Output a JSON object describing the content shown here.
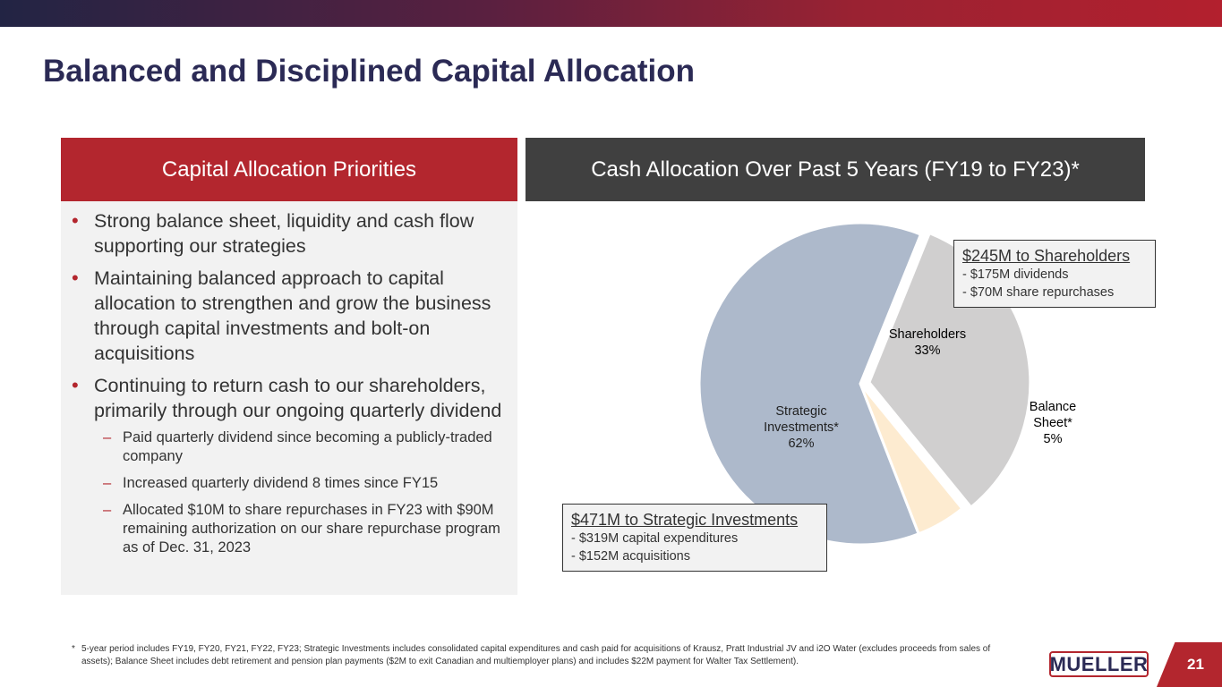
{
  "title": "Balanced and Disciplined Capital Allocation",
  "left_panel": {
    "header": "Capital Allocation Priorities",
    "bullets": [
      "Strong balance sheet, liquidity and cash flow supporting our strategies",
      "Maintaining balanced approach to capital allocation to strengthen and grow the business through capital investments and bolt-on acquisitions",
      "Continuing to return cash to our shareholders, primarily through our ongoing quarterly dividend"
    ],
    "sub_bullets": [
      "Paid quarterly dividend since becoming a publicly-traded company",
      "Increased quarterly dividend 8 times since FY15",
      "Allocated $10M to share repurchases in FY23 with $90M remaining authorization on our share repurchase program as of Dec. 31, 2023"
    ]
  },
  "right_panel": {
    "header": "Cash Allocation Over Past 5 Years (FY19 to FY23)*"
  },
  "chart_data": {
    "type": "pie",
    "title": "Cash Allocation Over Past 5 Years (FY19 to FY23)*",
    "slices": [
      {
        "name": "Shareholders",
        "label_lines": [
          "Shareholders",
          "33%"
        ],
        "value": 33,
        "color": "#d0cfcf",
        "exploded": true
      },
      {
        "name": "Balance Sheet*",
        "label_lines": [
          "Balance",
          "Sheet*",
          "5%"
        ],
        "value": 5,
        "color": "#fdebd0",
        "exploded": false
      },
      {
        "name": "Strategic Investments*",
        "label_lines": [
          "Strategic",
          "Investments*",
          "62%"
        ],
        "value": 62,
        "color": "#adb9cb",
        "exploded": false
      }
    ]
  },
  "callouts": {
    "shareholders": {
      "heading": "$245M to Shareholders",
      "lines": [
        "- $175M dividends",
        "- $70M share repurchases"
      ]
    },
    "strategic": {
      "heading": "$471M to Strategic Investments",
      "lines": [
        "- $319M capital expenditures",
        "- $152M acquisitions"
      ]
    }
  },
  "footnote": {
    "marker": "*",
    "text": "5-year period includes FY19, FY20, FY21, FY22, FY23;  Strategic Investments includes consolidated capital expenditures and cash paid for acquisitions of Krausz, Pratt Industrial JV and i2O Water (excludes proceeds from sales of assets); Balance Sheet includes debt retirement and pension plan payments ($2M to exit Canadian and multiemployer plans) and includes $22M payment for Walter Tax Settlement)."
  },
  "logo": "MUELLER",
  "page_number": "21",
  "colors": {
    "accent": "#b3262e",
    "title": "#2b2a55",
    "dark_header": "#404040"
  }
}
